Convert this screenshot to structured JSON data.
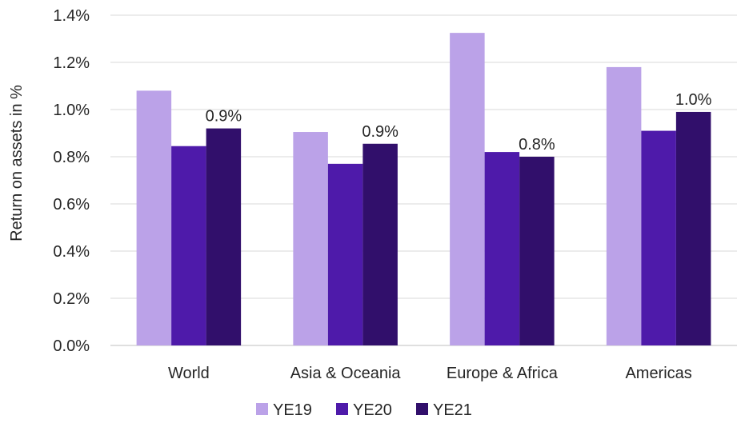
{
  "chart_data": {
    "type": "bar",
    "title": "",
    "xlabel": "",
    "ylabel": "Return on assets in %",
    "ylim": [
      0,
      1.4
    ],
    "yticks": [
      "0.0%",
      "0.2%",
      "0.4%",
      "0.6%",
      "0.8%",
      "1.0%",
      "1.2%",
      "1.4%"
    ],
    "grid": true,
    "legend_position": "bottom",
    "categories": [
      "World",
      "Asia & Oceania",
      "Europe & Africa",
      "Americas"
    ],
    "series": [
      {
        "name": "YE19",
        "color": "#BBA2E8",
        "values": [
          1.08,
          0.905,
          1.325,
          1.18
        ]
      },
      {
        "name": "YE20",
        "color": "#4E1AAA",
        "values": [
          0.845,
          0.77,
          0.82,
          0.91
        ]
      },
      {
        "name": "YE21",
        "color": "#310F6B",
        "values": [
          0.92,
          0.855,
          0.8,
          0.99
        ],
        "data_labels": [
          "0.9%",
          "0.9%",
          "0.8%",
          "1.0%"
        ]
      }
    ]
  }
}
